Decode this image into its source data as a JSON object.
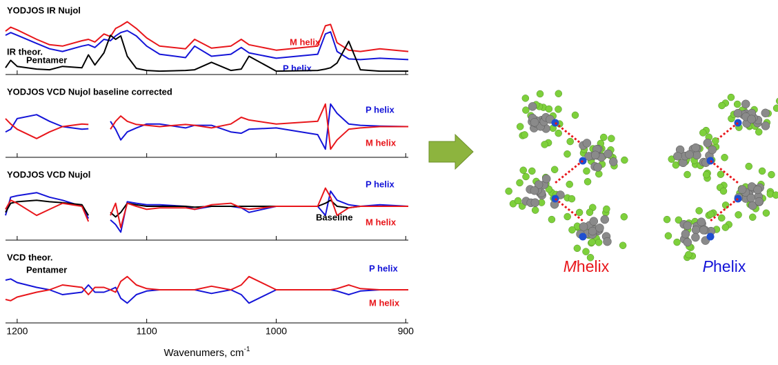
{
  "chart_data": [
    {
      "type": "line",
      "title": "YODJOS IR Nujol",
      "annotations": [
        "IR theor.",
        "Pentamer"
      ],
      "x": [
        1209,
        1205,
        1200,
        1185,
        1175,
        1165,
        1150,
        1145,
        1140,
        1133,
        1128,
        1124,
        1120,
        1115,
        1108,
        1100,
        1090,
        1070,
        1063,
        1050,
        1035,
        1027,
        1021,
        1000,
        968,
        962,
        958,
        953,
        944,
        935,
        920,
        898
      ],
      "xlim": [
        1209,
        898
      ],
      "ylim": [
        0,
        1
      ],
      "series": [
        {
          "name": "M helix",
          "color": "#e8161b",
          "values": [
            0.62,
            0.68,
            0.64,
            0.5,
            0.42,
            0.4,
            0.48,
            0.5,
            0.46,
            0.58,
            0.54,
            0.66,
            0.7,
            0.76,
            0.66,
            0.52,
            0.4,
            0.36,
            0.5,
            0.37,
            0.4,
            0.5,
            0.42,
            0.34,
            0.4,
            0.7,
            0.72,
            0.45,
            0.34,
            0.32,
            0.36,
            0.32
          ]
        },
        {
          "name": "P helix",
          "color": "#1414d8",
          "values": [
            0.56,
            0.6,
            0.56,
            0.44,
            0.36,
            0.32,
            0.4,
            0.42,
            0.38,
            0.5,
            0.48,
            0.55,
            0.6,
            0.63,
            0.55,
            0.4,
            0.28,
            0.23,
            0.4,
            0.25,
            0.28,
            0.38,
            0.3,
            0.22,
            0.28,
            0.58,
            0.61,
            0.32,
            0.21,
            0.2,
            0.22,
            0.2
          ]
        },
        {
          "color": "#000000",
          "values": [
            0.08,
            0.19,
            0.1,
            0.06,
            0.05,
            0.1,
            0.08,
            0.27,
            0.12,
            0.3,
            0.56,
            0.5,
            0.55,
            0.25,
            0.07,
            0.04,
            0.03,
            0.04,
            0.05,
            0.16,
            0.04,
            0.06,
            0.25,
            0.03,
            0.04,
            0.06,
            0.08,
            0.15,
            0.47,
            0.05,
            0.03,
            0.03
          ]
        }
      ]
    },
    {
      "type": "line",
      "title": "YODJOS VCD Nujol baseline corrected",
      "annotations": [],
      "x": [
        1209,
        1205,
        1200,
        1185,
        1175,
        1165,
        1150,
        1145,
        1140,
        1133,
        1128,
        1124,
        1120,
        1115,
        1108,
        1100,
        1090,
        1070,
        1063,
        1050,
        1035,
        1027,
        1021,
        1000,
        968,
        962,
        958,
        953,
        944,
        935,
        920,
        898
      ],
      "xlim": [
        1209,
        898
      ],
      "ylim": [
        -1,
        1
      ],
      "series": [
        {
          "name": "P helix",
          "color": "#1414d8",
          "values": [
            -0.2,
            -0.1,
            0.3,
            0.45,
            0.2,
            0,
            -0.1,
            -0.08,
            null,
            null,
            0.2,
            -0.1,
            -0.5,
            -0.2,
            -0.05,
            0.1,
            0.1,
            -0.05,
            0.05,
            0.05,
            -0.2,
            -0.25,
            -0.1,
            -0.05,
            -0.3,
            -0.85,
            0.85,
            0.5,
            0.1,
            0.05,
            0.02,
            0
          ]
        },
        {
          "name": "M helix",
          "color": "#e8161b",
          "values": [
            0.3,
            0.1,
            -0.1,
            -0.45,
            -0.2,
            0,
            0.1,
            0.08,
            null,
            null,
            -0.1,
            0.2,
            0.4,
            0.2,
            0.08,
            0.05,
            0,
            0.08,
            0.05,
            -0.05,
            0.1,
            0.35,
            0.25,
            0.1,
            0.2,
            0.85,
            -0.85,
            -0.5,
            -0.1,
            -0.05,
            0,
            0
          ]
        }
      ]
    },
    {
      "type": "line",
      "title": "YODJOS VCD Nujol",
      "annotations": [],
      "x": [
        1209,
        1205,
        1200,
        1185,
        1175,
        1165,
        1150,
        1145,
        1140,
        1133,
        1128,
        1124,
        1120,
        1115,
        1108,
        1100,
        1090,
        1070,
        1063,
        1050,
        1035,
        1027,
        1021,
        1000,
        968,
        962,
        958,
        953,
        944,
        935,
        920,
        898
      ],
      "xlim": [
        1209,
        898
      ],
      "ylim": [
        -1,
        1
      ],
      "series": [
        {
          "name": "P helix",
          "color": "#1414d8",
          "values": [
            -0.3,
            0.3,
            0.35,
            0.45,
            0.3,
            0.2,
            0,
            -0.4,
            null,
            null,
            -0.45,
            -0.6,
            -0.85,
            0.15,
            0.1,
            0.05,
            0.05,
            0,
            -0.1,
            0,
            0,
            -0.05,
            -0.2,
            0,
            0,
            -0.3,
            0.5,
            0.2,
            0.05,
            0,
            0.05,
            0
          ]
        },
        {
          "name": "Baseline",
          "color": "#000000",
          "values": [
            -0.2,
            0.1,
            0.15,
            0.2,
            0.15,
            0.12,
            0.05,
            -0.3,
            null,
            null,
            -0.2,
            -0.35,
            -0.2,
            0.1,
            0.05,
            0,
            0,
            0,
            -0.03,
            0,
            0,
            0,
            0,
            0,
            0,
            0.1,
            0.2,
            0,
            -0.05,
            0,
            0,
            0
          ]
        },
        {
          "name": "M helix",
          "color": "#e8161b",
          "values": [
            -0.1,
            0.2,
            0.1,
            -0.3,
            -0.1,
            0.1,
            0,
            -0.5,
            null,
            null,
            -0.3,
            0.1,
            -0.7,
            0.1,
            0,
            -0.1,
            -0.05,
            -0.05,
            -0.1,
            0.05,
            0.1,
            -0.05,
            -0.1,
            0,
            0,
            0.6,
            0.3,
            -0.3,
            -0.05,
            0,
            0,
            0
          ]
        }
      ]
    },
    {
      "type": "line",
      "title": "VCD theor.",
      "annotations": [
        "Pentamer"
      ],
      "x": [
        1209,
        1205,
        1200,
        1185,
        1175,
        1165,
        1150,
        1145,
        1140,
        1133,
        1128,
        1124,
        1120,
        1115,
        1108,
        1100,
        1090,
        1070,
        1063,
        1050,
        1035,
        1027,
        1021,
        1000,
        968,
        962,
        958,
        953,
        944,
        935,
        920,
        898
      ],
      "xlim": [
        1209,
        898
      ],
      "ylim": [
        -1,
        1
      ],
      "xticks": [
        1200,
        1100,
        1000,
        900
      ],
      "x_label": "Wavenumers, cm",
      "x_label_sup": "-1",
      "series": [
        {
          "name": "P helix",
          "color": "#1414d8",
          "values": [
            0.4,
            0.45,
            0.3,
            0.1,
            0,
            -0.2,
            -0.1,
            0.2,
            -0.1,
            -0.1,
            0,
            0.1,
            -0.35,
            -0.55,
            -0.2,
            -0.05,
            0,
            0,
            0,
            -0.15,
            0,
            -0.2,
            -0.55,
            0,
            0,
            0,
            0,
            -0.05,
            -0.2,
            -0.05,
            0,
            0
          ]
        },
        {
          "name": "M helix",
          "color": "#e8161b",
          "values": [
            -0.4,
            -0.45,
            -0.3,
            -0.1,
            0,
            0.2,
            0.1,
            -0.2,
            0.1,
            0.1,
            0,
            -0.1,
            0.35,
            0.55,
            0.2,
            0.05,
            0,
            0,
            0,
            0.15,
            0,
            0.2,
            0.55,
            0,
            0,
            0,
            0,
            0.05,
            0.2,
            0.05,
            0,
            0
          ]
        }
      ]
    }
  ],
  "structures": [
    {
      "letter": "M",
      "text": "helix",
      "color": "#e8161b"
    },
    {
      "letter": "P",
      "text": "helix",
      "color": "#1414d8"
    }
  ]
}
